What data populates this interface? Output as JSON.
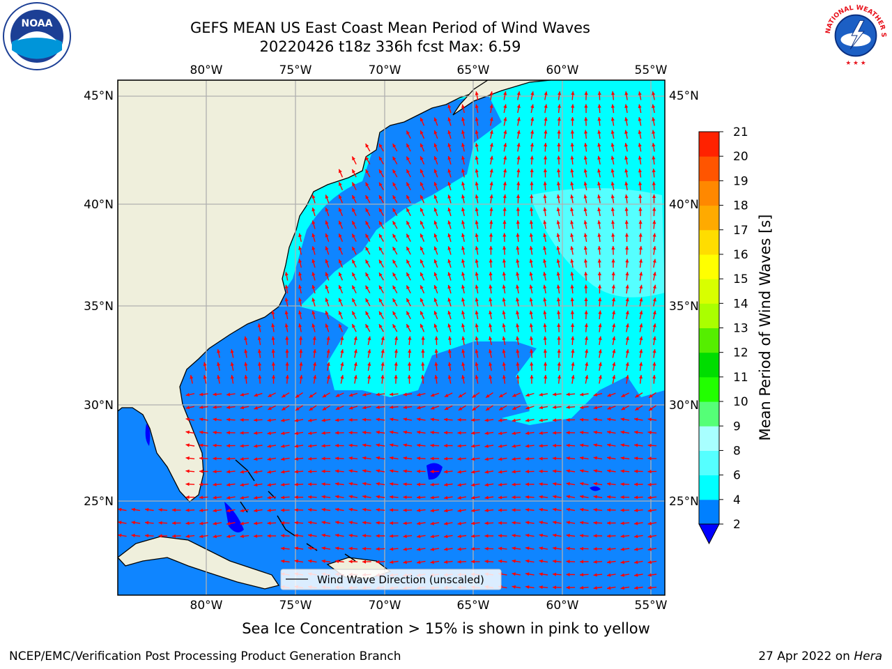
{
  "title": {
    "line1": "GEFS MEAN US East Coast Mean Period of Wind Waves",
    "line2": "20220426 t18z 336h fcst   Max: 6.59"
  },
  "logos": {
    "left": {
      "icon": "noaa-logo",
      "text": "NOAA"
    },
    "right": {
      "icon": "nws-logo",
      "text": "NATIONAL WEATHER SERVICE"
    }
  },
  "map": {
    "lon_labels": [
      "80°W",
      "75°W",
      "70°W",
      "65°W",
      "60°W",
      "55°W"
    ],
    "lat_labels": [
      "45°N",
      "40°N",
      "35°N",
      "30°N",
      "25°N"
    ],
    "legend_text": "Wind Wave Direction (unscaled)",
    "colors": {
      "land": "#efefdc",
      "ocean_low": "#0f85ff",
      "ocean_mid": "#00ffff",
      "ocean_light": "#55ffff",
      "arrow": "#ff0000",
      "grid": "#b0b0b0"
    }
  },
  "colorbar": {
    "label": "Mean Period of Wind Waves [s]",
    "ticks": [
      "2",
      "4",
      "6",
      "8",
      "9",
      "10",
      "11",
      "12",
      "13",
      "14",
      "15",
      "16",
      "17",
      "18",
      "19",
      "20",
      "21"
    ],
    "colors": [
      "#0000ff",
      "#0080ff",
      "#00ffff",
      "#55ffff",
      "#a8ffff",
      "#55ff77",
      "#22ff00",
      "#00dd00",
      "#55ee00",
      "#aaff00",
      "#d8ff00",
      "#ffff00",
      "#ffdd00",
      "#ffaa00",
      "#ff8800",
      "#ff5500",
      "#ff2200",
      "#ff0000"
    ]
  },
  "ice_note": "Sea Ice Concentration > 15% is shown in pink to yellow",
  "footer": {
    "left": "NCEP/EMC/Verification Post Processing Product Generation Branch",
    "right_date": "27 Apr 2022 on ",
    "right_host": "Hera"
  }
}
